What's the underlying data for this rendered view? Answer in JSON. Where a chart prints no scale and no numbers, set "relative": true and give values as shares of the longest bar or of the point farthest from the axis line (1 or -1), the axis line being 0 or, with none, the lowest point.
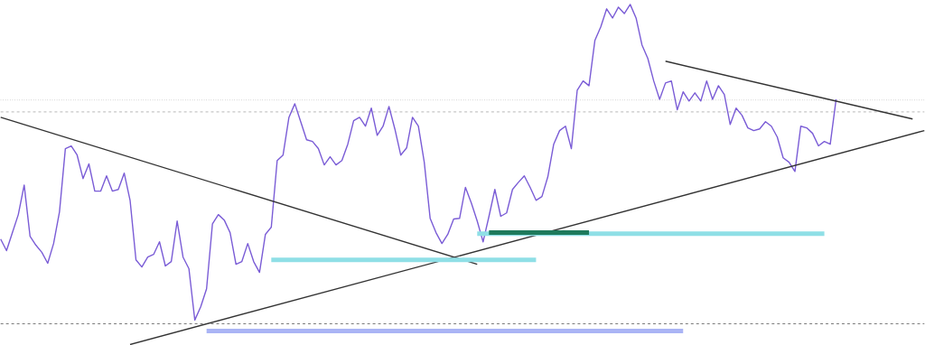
{
  "chart_data": {
    "type": "line",
    "relative": true,
    "categories": [
      null,
      null,
      null,
      null,
      null,
      null,
      null,
      null,
      null,
      null,
      null,
      null,
      null,
      null,
      null,
      null,
      null,
      null,
      null,
      null,
      null,
      null,
      null,
      null,
      null,
      null,
      null,
      null,
      null,
      null,
      null,
      null,
      null,
      null,
      null,
      null,
      null,
      null,
      null,
      null,
      null,
      null,
      null,
      null,
      null,
      null,
      null,
      null,
      null,
      null,
      null,
      null,
      null,
      null,
      null,
      null,
      null,
      null,
      null,
      null,
      null,
      null,
      null,
      null,
      null,
      null,
      null,
      null,
      null,
      null,
      null,
      null,
      null,
      null,
      null,
      null,
      null,
      null,
      null,
      null,
      null,
      null,
      null,
      null,
      null,
      null,
      null,
      null,
      null,
      null,
      null,
      null,
      null,
      null,
      null,
      null,
      null,
      null,
      null,
      null,
      null,
      null,
      null,
      null,
      null,
      null,
      null,
      null,
      null,
      null,
      null,
      null,
      null,
      null,
      null,
      null,
      null,
      null,
      null,
      null,
      null,
      null,
      null,
      null,
      null,
      null,
      null,
      null,
      null,
      null,
      null,
      null,
      null,
      null,
      null,
      null,
      null,
      null,
      null,
      null,
      null,
      null,
      null,
      null,
      null,
      null,
      null,
      null,
      null,
      null,
      null,
      null,
      null,
      null,
      null,
      null,
      null,
      null
    ],
    "series": [
      {
        "color": "#7a5cd6",
        "values": [
          0.31,
          0.276,
          0.329,
          0.382,
          0.469,
          0.318,
          0.292,
          0.271,
          0.239,
          0.297,
          0.39,
          0.576,
          0.584,
          0.557,
          0.488,
          0.531,
          0.451,
          0.451,
          0.496,
          0.451,
          0.456,
          0.504,
          0.424,
          0.249,
          0.228,
          0.257,
          0.265,
          0.302,
          0.231,
          0.244,
          0.363,
          0.257,
          0.223,
          0.072,
          0.111,
          0.164,
          0.355,
          0.382,
          0.366,
          0.329,
          0.236,
          0.244,
          0.297,
          0.244,
          0.212,
          0.324,
          0.345,
          0.541,
          0.557,
          0.668,
          0.708,
          0.655,
          0.602,
          0.597,
          0.576,
          0.528,
          0.552,
          0.528,
          0.541,
          0.589,
          0.658,
          0.668,
          0.642,
          0.695,
          0.615,
          0.642,
          0.7,
          0.634,
          0.557,
          0.578,
          0.668,
          0.642,
          0.536,
          0.371,
          0.329,
          0.297,
          0.324,
          0.369,
          0.371,
          0.462,
          0.416,
          0.363,
          0.302,
          0.377,
          0.456,
          0.377,
          0.387,
          0.456,
          0.477,
          0.496,
          0.462,
          0.424,
          0.435,
          0.493,
          0.589,
          0.629,
          0.642,
          0.576,
          0.748,
          0.775,
          0.761,
          0.894,
          0.934,
          0.987,
          0.96,
          0.992,
          0.973,
          1,
          0.96,
          0.881,
          0.841,
          0.775,
          0.721,
          0.769,
          0.775,
          0.69,
          0.743,
          0.716,
          0.74,
          0.716,
          0.775,
          0.721,
          0.761,
          0.735,
          0.647,
          0.695,
          0.674,
          0.637,
          0.629,
          0.634,
          0.655,
          0.642,
          0.61,
          0.549,
          0.536,
          0.509,
          0.642,
          0.637,
          0.621,
          0.584,
          0.597,
          0.589,
          0.721,
          null,
          null,
          null,
          null,
          null,
          null,
          null,
          null,
          null,
          null,
          null,
          null,
          null,
          null,
          null
        ]
      },
      {
        "color": "#7a5cd6",
        "values": [
          null,
          null,
          null,
          null,
          null,
          null,
          null,
          null,
          null,
          null,
          null,
          null,
          null,
          null,
          null,
          null,
          null,
          null,
          null,
          null,
          null,
          null,
          null,
          null,
          null,
          null,
          null,
          null,
          null,
          null,
          null,
          null,
          null,
          null,
          null,
          null,
          null,
          null,
          null,
          null,
          null,
          null,
          null,
          null,
          null,
          null,
          null,
          null,
          null,
          null,
          null,
          null,
          null,
          null,
          null,
          null,
          null,
          null,
          null,
          null,
          null,
          null,
          null,
          null,
          null,
          null,
          null,
          null,
          null,
          null,
          null,
          null,
          null,
          null,
          null,
          null,
          null,
          null,
          null,
          null,
          null,
          null,
          null,
          null,
          null,
          null,
          null,
          null,
          null,
          null,
          null,
          null,
          null,
          null,
          null,
          null,
          null,
          null,
          null,
          null,
          null,
          null,
          null,
          null,
          null,
          null,
          null,
          null,
          null,
          null,
          null,
          null,
          null,
          null,
          null,
          null,
          null,
          null,
          null,
          null,
          null,
          null,
          null,
          null,
          null,
          null,
          null,
          null,
          null,
          null,
          null,
          null,
          null,
          null,
          null,
          null,
          null,
          null,
          null,
          null,
          null,
          null,
          null,
          null,
          null,
          null,
          null,
          null,
          null,
          null,
          null,
          null,
          null,
          null,
          null,
          null,
          null,
          null
        ]
      },
      {
        "color": "#333333",
        "values": [
          0.668,
          null,
          null,
          null,
          null,
          null,
          null,
          null,
          null,
          null,
          null,
          null,
          null,
          null,
          null,
          null,
          null,
          null,
          null,
          null,
          null,
          null,
          null,
          null,
          null,
          null,
          null,
          null,
          null,
          null,
          null,
          null,
          null,
          null,
          null,
          null,
          null,
          null,
          null,
          null,
          null,
          null,
          null,
          null,
          null,
          null,
          null,
          null,
          null,
          null,
          null,
          null,
          null,
          null,
          null,
          null,
          null,
          null,
          null,
          null,
          null,
          null,
          null,
          null,
          null,
          null,
          null,
          null,
          null,
          null,
          null,
          null,
          null,
          null,
          null,
          null,
          null,
          null,
          null,
          null,
          null,
          0.236,
          null,
          null,
          null,
          null,
          null,
          null,
          null,
          null,
          null,
          null,
          null,
          null,
          null,
          null,
          null,
          null,
          null,
          null,
          null,
          null,
          null,
          null,
          null,
          null,
          null,
          null,
          null,
          null,
          null,
          null,
          null,
          null,
          null,
          null,
          null,
          null,
          null,
          null,
          null,
          null,
          null,
          null,
          null,
          null,
          null,
          null,
          null,
          null,
          null,
          null,
          null,
          null,
          null,
          null,
          null,
          null,
          null,
          null,
          null,
          null,
          null,
          null,
          null,
          null,
          null,
          null,
          null,
          null,
          null,
          null,
          null,
          null,
          null,
          null,
          null,
          null
        ]
      },
      {
        "color": "#333333",
        "values": [
          null,
          null,
          null,
          null,
          null,
          null,
          null,
          null,
          null,
          null,
          null,
          null,
          null,
          null,
          null,
          null,
          null,
          null,
          null,
          null,
          null,
          null,
          0,
          null,
          null,
          null,
          null,
          null,
          null,
          null,
          null,
          null,
          null,
          null,
          null,
          null,
          null,
          null,
          null,
          null,
          null,
          null,
          null,
          null,
          null,
          null,
          null,
          null,
          null,
          null,
          null,
          null,
          null,
          null,
          null,
          null,
          null,
          null,
          null,
          null,
          null,
          null,
          null,
          null,
          null,
          null,
          null,
          null,
          null,
          null,
          null,
          null,
          null,
          null,
          null,
          null,
          null,
          null,
          null,
          null,
          null,
          null,
          null,
          null,
          null,
          null,
          null,
          null,
          null,
          null,
          null,
          null,
          null,
          null,
          null,
          null,
          null,
          null,
          null,
          null,
          null,
          null,
          null,
          null,
          null,
          null,
          null,
          null,
          null,
          null,
          null,
          null,
          null,
          null,
          null,
          null,
          null,
          null,
          null,
          null,
          null,
          null,
          null,
          null,
          null,
          null,
          null,
          null,
          null,
          null,
          null,
          null,
          null,
          null,
          null,
          null,
          null,
          null,
          null,
          null,
          null,
          null,
          null,
          null,
          null,
          null,
          null,
          null,
          null,
          null,
          null,
          null,
          null,
          null,
          null,
          null,
          null,
          0.629
        ]
      },
      {
        "color": "#333333",
        "values": [
          null,
          null,
          null,
          null,
          null,
          null,
          null,
          null,
          null,
          null,
          null,
          null,
          null,
          null,
          null,
          null,
          null,
          null,
          null,
          null,
          null,
          null,
          null,
          null,
          null,
          null,
          null,
          null,
          null,
          null,
          null,
          null,
          null,
          null,
          null,
          null,
          null,
          null,
          null,
          null,
          null,
          null,
          null,
          null,
          null,
          null,
          null,
          null,
          null,
          null,
          null,
          null,
          null,
          null,
          null,
          null,
          null,
          null,
          null,
          null,
          null,
          null,
          null,
          null,
          null,
          null,
          null,
          null,
          null,
          null,
          null,
          null,
          null,
          null,
          null,
          null,
          null,
          null,
          null,
          null,
          null,
          null,
          null,
          null,
          null,
          null,
          null,
          null,
          null,
          null,
          null,
          null,
          null,
          null,
          null,
          null,
          null,
          null,
          null,
          null,
          null,
          null,
          null,
          null,
          null,
          null,
          null,
          null,
          null,
          null,
          null,
          null,
          null,
          0.833,
          null,
          null,
          null,
          null,
          null,
          null,
          null,
          null,
          null,
          null,
          null,
          null,
          null,
          null,
          null,
          null,
          null,
          null,
          null,
          null,
          null,
          null,
          null,
          null,
          null,
          null,
          null,
          null,
          null,
          null,
          null,
          null,
          null,
          null,
          null,
          null,
          null,
          null,
          null,
          null,
          null,
          0.663,
          null,
          null
        ]
      },
      {
        "color": "#8fdfe6",
        "values": [
          null,
          null,
          null,
          null,
          null,
          null,
          null,
          null,
          null,
          null,
          null,
          null,
          null,
          null,
          null,
          null,
          null,
          null,
          null,
          null,
          null,
          null,
          null,
          null,
          null,
          null,
          null,
          null,
          null,
          null,
          null,
          null,
          null,
          null,
          null,
          null,
          null,
          null,
          null,
          null,
          null,
          null,
          null,
          null,
          null,
          null,
          0.249,
          null,
          null,
          null,
          null,
          null,
          null,
          null,
          null,
          null,
          null,
          null,
          null,
          null,
          null,
          null,
          null,
          null,
          null,
          null,
          null,
          null,
          null,
          null,
          null,
          null,
          null,
          null,
          null,
          null,
          null,
          null,
          null,
          null,
          null,
          null,
          null,
          null,
          null,
          null,
          null,
          null,
          null,
          null,
          null,
          0.249,
          null,
          null,
          null,
          null,
          null,
          null,
          null,
          null,
          null,
          null,
          null,
          null,
          null,
          null,
          null,
          null,
          null,
          null,
          null,
          null,
          null,
          null,
          null,
          null,
          null,
          null,
          null,
          null,
          null,
          null,
          null,
          null,
          null,
          null,
          null,
          null,
          null,
          null,
          null,
          null,
          null,
          null,
          null,
          null,
          null,
          null,
          null,
          null,
          null,
          null,
          null,
          null,
          null,
          null,
          null,
          null,
          null,
          null,
          null,
          null,
          null,
          null,
          null,
          null,
          null,
          null
        ]
      },
      {
        "color": "#8fdfe6",
        "values": [
          null,
          null,
          null,
          null,
          null,
          null,
          null,
          null,
          null,
          null,
          null,
          null,
          null,
          null,
          null,
          null,
          null,
          null,
          null,
          null,
          null,
          null,
          null,
          null,
          null,
          null,
          null,
          null,
          null,
          null,
          null,
          null,
          null,
          null,
          null,
          null,
          null,
          null,
          null,
          null,
          null,
          null,
          null,
          null,
          null,
          null,
          null,
          null,
          null,
          null,
          null,
          null,
          null,
          null,
          null,
          null,
          null,
          null,
          null,
          null,
          null,
          null,
          null,
          null,
          null,
          null,
          null,
          null,
          null,
          null,
          null,
          null,
          null,
          null,
          null,
          null,
          null,
          null,
          null,
          null,
          null,
          0.326,
          null,
          null,
          null,
          null,
          null,
          null,
          null,
          null,
          null,
          null,
          null,
          null,
          null,
          null,
          null,
          null,
          null,
          null,
          null,
          null,
          null,
          null,
          null,
          null,
          null,
          null,
          null,
          null,
          null,
          null,
          null,
          null,
          null,
          null,
          null,
          null,
          null,
          null,
          null,
          null,
          null,
          null,
          null,
          null,
          null,
          null,
          null,
          null,
          null,
          null,
          null,
          null,
          null,
          null,
          null,
          null,
          null,
          null,
          0.326,
          null,
          null,
          null,
          null,
          null,
          null,
          null,
          null,
          null,
          null,
          null,
          null,
          null,
          null,
          null,
          null,
          null
        ]
      },
      {
        "color": "#aab4f5",
        "values": [
          null,
          null,
          null,
          null,
          null,
          null,
          null,
          null,
          null,
          null,
          null,
          null,
          null,
          null,
          null,
          null,
          null,
          null,
          null,
          null,
          null,
          null,
          null,
          null,
          null,
          null,
          null,
          null,
          null,
          null,
          null,
          null,
          null,
          null,
          null,
          0.04,
          null,
          null,
          null,
          null,
          null,
          null,
          null,
          null,
          null,
          null,
          null,
          null,
          null,
          null,
          null,
          null,
          null,
          null,
          null,
          null,
          null,
          null,
          null,
          null,
          null,
          null,
          null,
          null,
          null,
          null,
          null,
          null,
          null,
          null,
          null,
          null,
          null,
          null,
          null,
          null,
          null,
          null,
          null,
          null,
          null,
          null,
          null,
          null,
          null,
          null,
          null,
          null,
          null,
          null,
          null,
          null,
          null,
          null,
          null,
          null,
          null,
          null,
          null,
          null,
          null,
          null,
          null,
          null,
          null,
          null,
          null,
          null,
          null,
          null,
          null,
          null,
          null,
          null,
          null,
          null,
          0.04,
          null,
          null,
          null,
          null,
          null,
          null,
          null,
          null,
          null,
          null,
          null,
          null,
          null,
          null,
          null,
          null,
          null,
          null,
          null,
          null,
          null,
          null,
          null,
          null,
          null,
          null,
          null,
          null,
          null,
          null,
          null,
          null,
          null,
          null,
          null,
          null,
          null,
          null,
          null,
          null,
          null
        ]
      },
      {
        "color": "#1e7a5c",
        "values": [
          null,
          null,
          null,
          null,
          null,
          null,
          null,
          null,
          null,
          null,
          null,
          null,
          null,
          null,
          null,
          null,
          null,
          null,
          null,
          null,
          null,
          null,
          null,
          null,
          null,
          null,
          null,
          null,
          null,
          null,
          null,
          null,
          null,
          null,
          null,
          null,
          null,
          null,
          null,
          null,
          null,
          null,
          null,
          null,
          null,
          null,
          null,
          null,
          null,
          null,
          null,
          null,
          null,
          null,
          null,
          null,
          null,
          null,
          null,
          null,
          null,
          null,
          null,
          null,
          null,
          null,
          null,
          null,
          null,
          null,
          null,
          null,
          null,
          null,
          null,
          null,
          null,
          null,
          null,
          null,
          null,
          null,
          null,
          0.329,
          null,
          null,
          null,
          null,
          null,
          null,
          null,
          null,
          null,
          null,
          null,
          null,
          null,
          null,
          null,
          null,
          0.329,
          null,
          null,
          null,
          null,
          null,
          null,
          null,
          null,
          null,
          null,
          null,
          null,
          null,
          null,
          null,
          null,
          null,
          null,
          null,
          null,
          null,
          null,
          null,
          null,
          null,
          null,
          null,
          null,
          null,
          null,
          null,
          null,
          null,
          null,
          null,
          null,
          null,
          null,
          null,
          null,
          null,
          null,
          null,
          null,
          null,
          null,
          null,
          null,
          null,
          null,
          null,
          null,
          null,
          null,
          null,
          null,
          null
        ]
      }
    ],
    "ref_lines": [
      {
        "axis": "y",
        "value": 0.719,
        "color": "#888888",
        "line_style": "dotted"
      },
      {
        "axis": "y",
        "value": 0.684,
        "color": "#888888",
        "line_style": "dashed"
      },
      {
        "axis": "y",
        "value": 0.061,
        "color": "#222222",
        "line_style": "dashed"
      }
    ]
  }
}
